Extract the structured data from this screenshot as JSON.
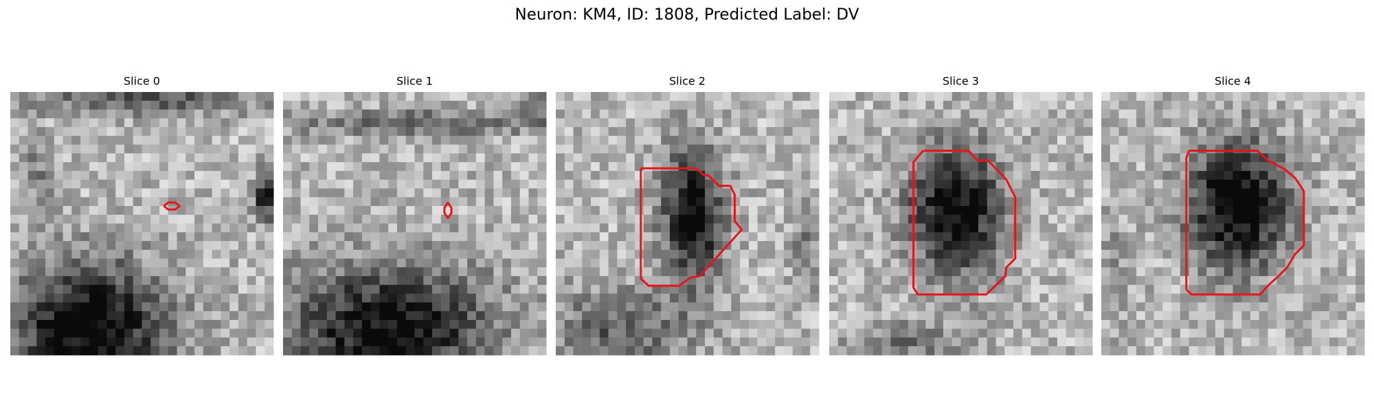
{
  "title": "Neuron: KM4, ID: 1808, Predicted Label: DV",
  "panels": [
    {
      "title": "Slice 0"
    },
    {
      "title": "Slice 1"
    },
    {
      "title": "Slice 2"
    },
    {
      "title": "Slice 3"
    },
    {
      "title": "Slice 4"
    }
  ]
}
